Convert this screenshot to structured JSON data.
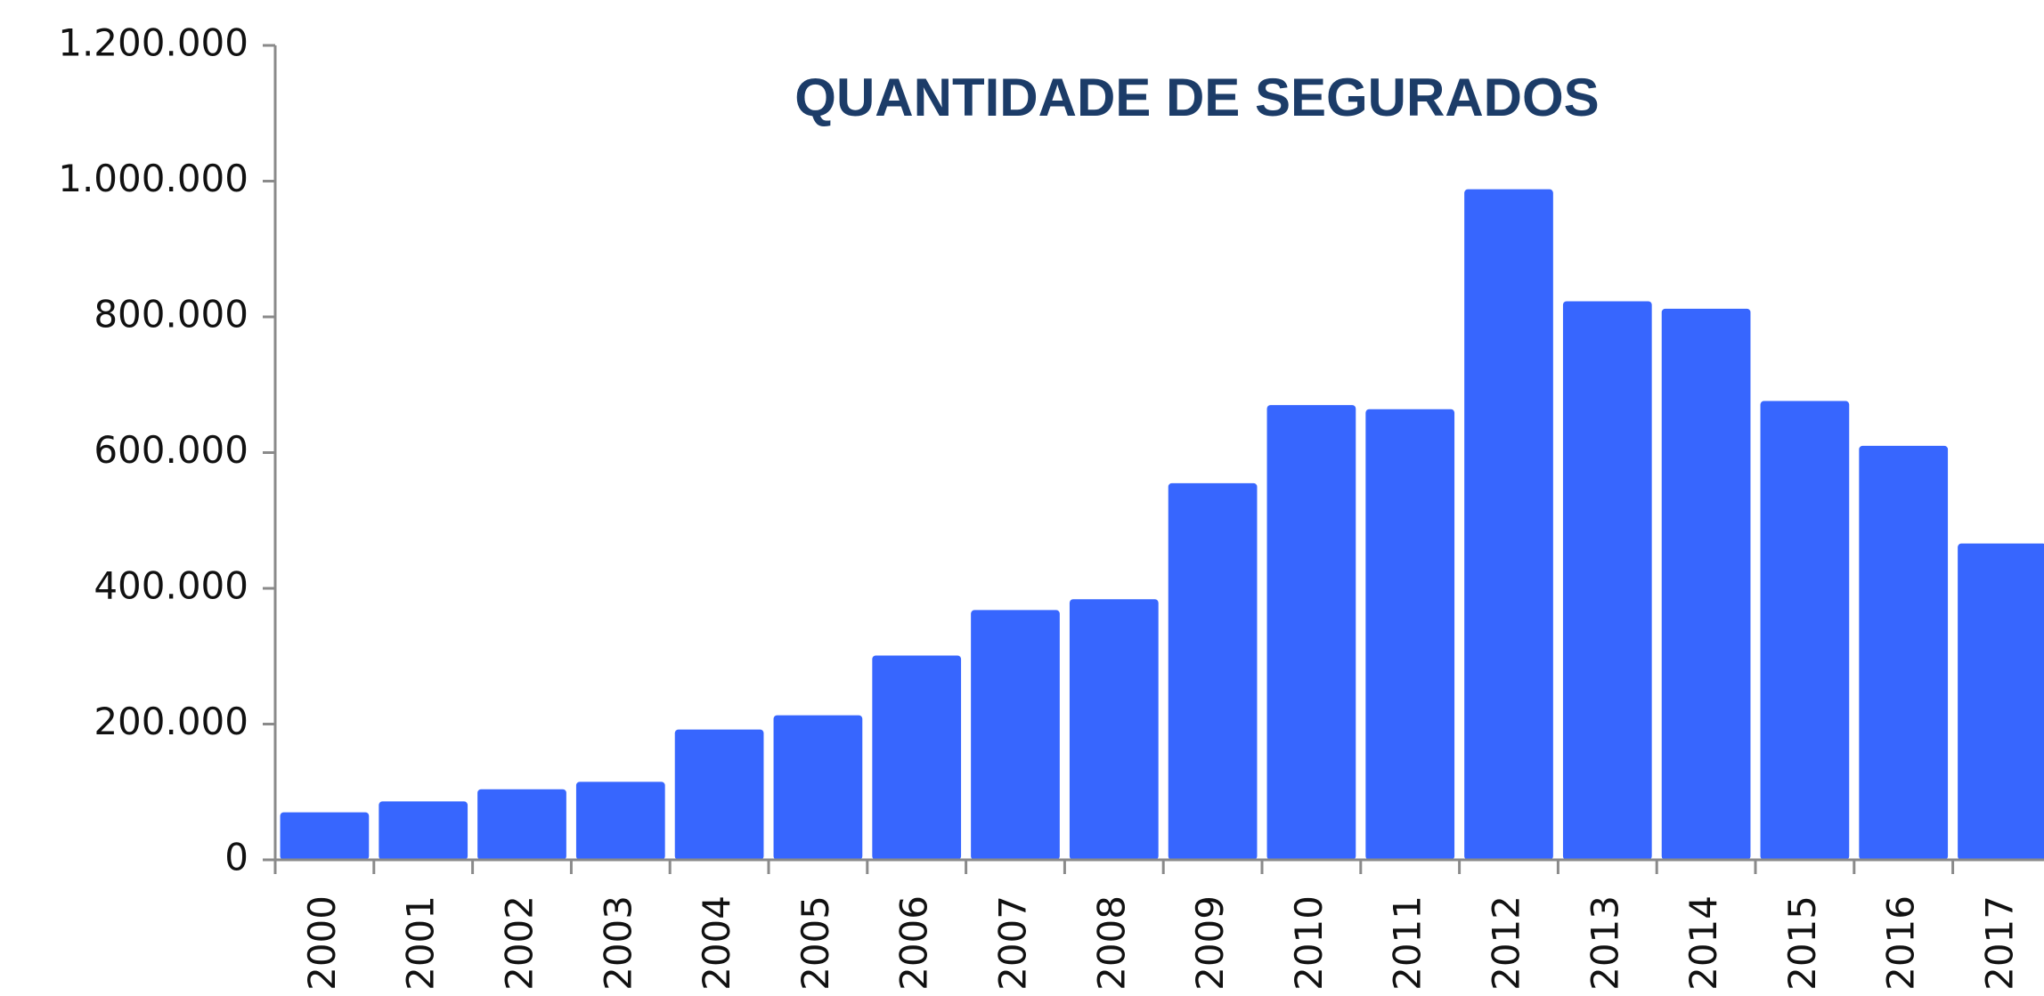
{
  "chart_data": {
    "type": "bar",
    "title": "QUANTIDADE DE SEGURADOS",
    "categories": [
      "2000",
      "2001",
      "2002",
      "2003",
      "2004",
      "2005",
      "2006",
      "2007",
      "2008",
      "2009",
      "2010",
      "2011",
      "2012",
      "2013",
      "2014",
      "2015",
      "2016",
      "2017"
    ],
    "values": [
      70000,
      86000,
      104000,
      115000,
      192000,
      213000,
      301000,
      368000,
      384000,
      555000,
      670000,
      664000,
      988000,
      823000,
      812000,
      676000,
      610000,
      466000
    ],
    "color": "#3766fe",
    "ylim": [
      0,
      1200000
    ],
    "yticks": [
      0,
      {
        "value": 200000,
        "label": "200.000"
      },
      {
        "value": 400000,
        "label": "400.000"
      },
      {
        "value": 600000,
        "label": "600.000"
      },
      {
        "value": 800000,
        "label": "800.000"
      },
      {
        "value": 1000000,
        "label": "1.000.000"
      },
      {
        "value": 1200000,
        "label": "1.200.000"
      }
    ],
    "grid": false
  }
}
